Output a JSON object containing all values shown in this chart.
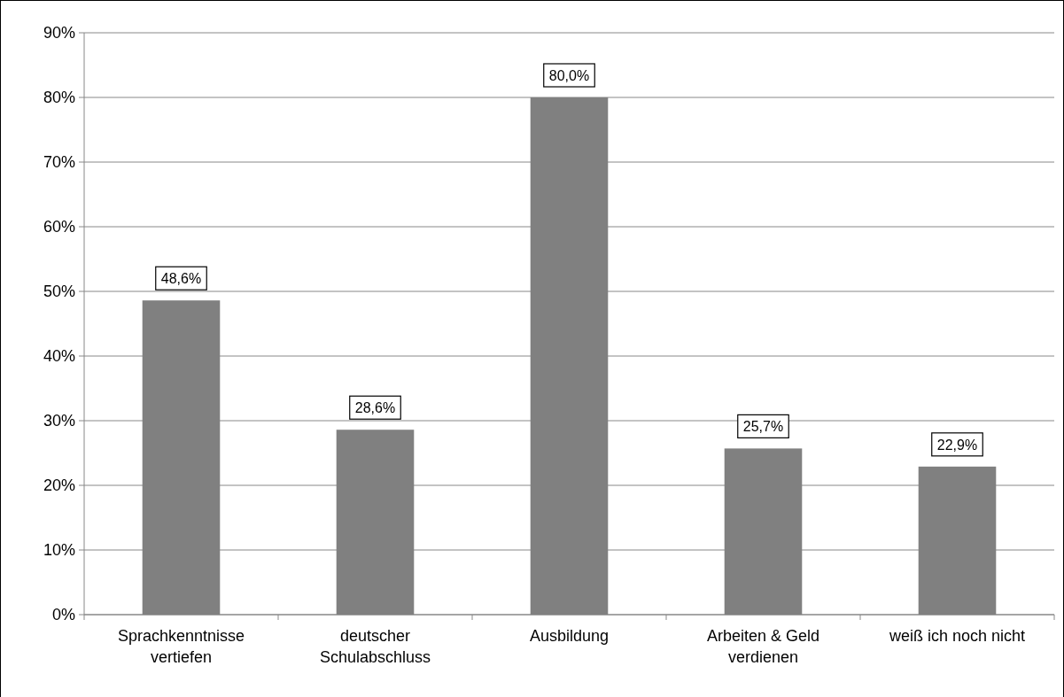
{
  "chart_data": {
    "type": "bar",
    "categories": [
      "Sprachkenntnisse vertiefen",
      "deutscher Schulabschluss",
      "Ausbildung",
      "Arbeiten & Geld verdienen",
      "weiß ich noch nicht"
    ],
    "values": [
      48.6,
      28.6,
      80.0,
      25.7,
      22.9
    ],
    "value_labels": [
      "48,6%",
      "28,6%",
      "80,0%",
      "25,7%",
      "22,9%"
    ],
    "color": "#808080",
    "ylim": [
      0,
      90
    ],
    "yticks": [
      {
        "value": 0,
        "label": "0%"
      },
      {
        "value": 10,
        "label": "10%"
      },
      {
        "value": 20,
        "label": "20%"
      },
      {
        "value": 30,
        "label": "30%"
      },
      {
        "value": 40,
        "label": "40%"
      },
      {
        "value": 50,
        "label": "50%"
      },
      {
        "value": 60,
        "label": "60%"
      },
      {
        "value": 70,
        "label": "70%"
      },
      {
        "value": 80,
        "label": "80%"
      },
      {
        "value": 90,
        "label": "90%"
      }
    ],
    "grid": "y"
  }
}
